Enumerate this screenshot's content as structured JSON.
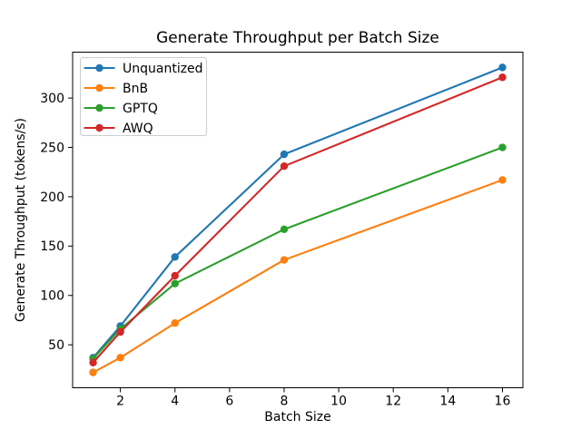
{
  "background_color": "#ffffff",
  "chart_data": {
    "type": "line",
    "title": "Generate Throughput per Batch Size",
    "xlabel": "Batch Size",
    "ylabel": "Generate Throughput (tokens/s)",
    "x": [
      1,
      2,
      4,
      8,
      16
    ],
    "series": [
      {
        "name": "Unquantized",
        "color": "#1f77b4",
        "values": [
          37,
          69,
          139,
          243,
          331
        ]
      },
      {
        "name": "BnB",
        "color": "#ff7f0e",
        "values": [
          22,
          37,
          72,
          136,
          217
        ]
      },
      {
        "name": "GPTQ",
        "color": "#2ca02c",
        "values": [
          36,
          66,
          112,
          167,
          250
        ]
      },
      {
        "name": "AWQ",
        "color": "#d62728",
        "values": [
          32,
          63,
          120,
          231,
          321
        ]
      }
    ],
    "xticks": [
      2,
      4,
      6,
      8,
      10,
      12,
      14,
      16
    ],
    "yticks": [
      50,
      100,
      150,
      200,
      250,
      300
    ],
    "xlim": [
      0.25,
      16.75
    ],
    "ylim": [
      6.5,
      346.5
    ],
    "grid": false,
    "legend_position": "upper-left",
    "marker": "circle",
    "axis_color": "#000000",
    "legend_border_color": "#cccccc"
  }
}
